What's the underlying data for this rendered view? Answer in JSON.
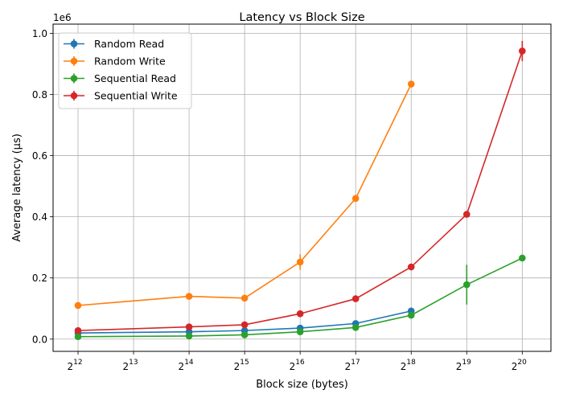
{
  "chart_data": {
    "type": "line",
    "title": "Latency vs Block Size",
    "xlabel": "Block size (bytes)",
    "ylabel": "Average latency (µs)",
    "x_scale": "log2",
    "y_offset_text": "1e6",
    "xlim": [
      3000,
      1500000
    ],
    "ylim": [
      -40000,
      1030000
    ],
    "grid": true,
    "legend_position": "top-left",
    "x_ticks": [
      {
        "value": 4096,
        "base": "2",
        "exp": "12"
      },
      {
        "value": 8192,
        "base": "2",
        "exp": "13"
      },
      {
        "value": 16384,
        "base": "2",
        "exp": "14"
      },
      {
        "value": 32768,
        "base": "2",
        "exp": "15"
      },
      {
        "value": 65536,
        "base": "2",
        "exp": "16"
      },
      {
        "value": 131072,
        "base": "2",
        "exp": "17"
      },
      {
        "value": 262144,
        "base": "2",
        "exp": "18"
      },
      {
        "value": 524288,
        "base": "2",
        "exp": "19"
      },
      {
        "value": 1048576,
        "base": "2",
        "exp": "20"
      }
    ],
    "y_ticks": [
      {
        "value": 0,
        "label": "0.0"
      },
      {
        "value": 200000,
        "label": "0.2"
      },
      {
        "value": 400000,
        "label": "0.4"
      },
      {
        "value": 600000,
        "label": "0.6"
      },
      {
        "value": 800000,
        "label": "0.8"
      },
      {
        "value": 1000000,
        "label": "1.0"
      }
    ],
    "series": [
      {
        "name": "Random Read",
        "color": "#1f77b4",
        "x": [
          4096,
          16384,
          32768,
          65536,
          131072,
          262144
        ],
        "y": [
          20000,
          24000,
          28000,
          36000,
          51000,
          92000
        ],
        "err": [
          2000,
          2000,
          2000,
          3000,
          4000,
          6000
        ]
      },
      {
        "name": "Random Write",
        "color": "#ff7f0e",
        "x": [
          4096,
          16384,
          32768,
          65536,
          131072,
          262144
        ],
        "y": [
          110000,
          140000,
          134000,
          252000,
          460000,
          834000
        ],
        "err": [
          4000,
          5000,
          4000,
          25000,
          8000,
          6000
        ]
      },
      {
        "name": "Sequential Read",
        "color": "#2ca02c",
        "x": [
          4096,
          16384,
          32768,
          65536,
          131072,
          262144,
          524288,
          1048576
        ],
        "y": [
          8000,
          10000,
          14000,
          24000,
          38000,
          78000,
          178000,
          265000
        ],
        "err": [
          2000,
          2000,
          2000,
          3000,
          4000,
          6000,
          65000,
          6000
        ]
      },
      {
        "name": "Sequential Write",
        "color": "#d62728",
        "x": [
          4096,
          16384,
          32768,
          65536,
          131072,
          262144,
          524288,
          1048576
        ],
        "y": [
          28000,
          40000,
          47000,
          83000,
          132000,
          236000,
          408000,
          942000
        ],
        "err": [
          2000,
          3000,
          3000,
          4000,
          5000,
          6000,
          8000,
          33000
        ]
      }
    ]
  }
}
